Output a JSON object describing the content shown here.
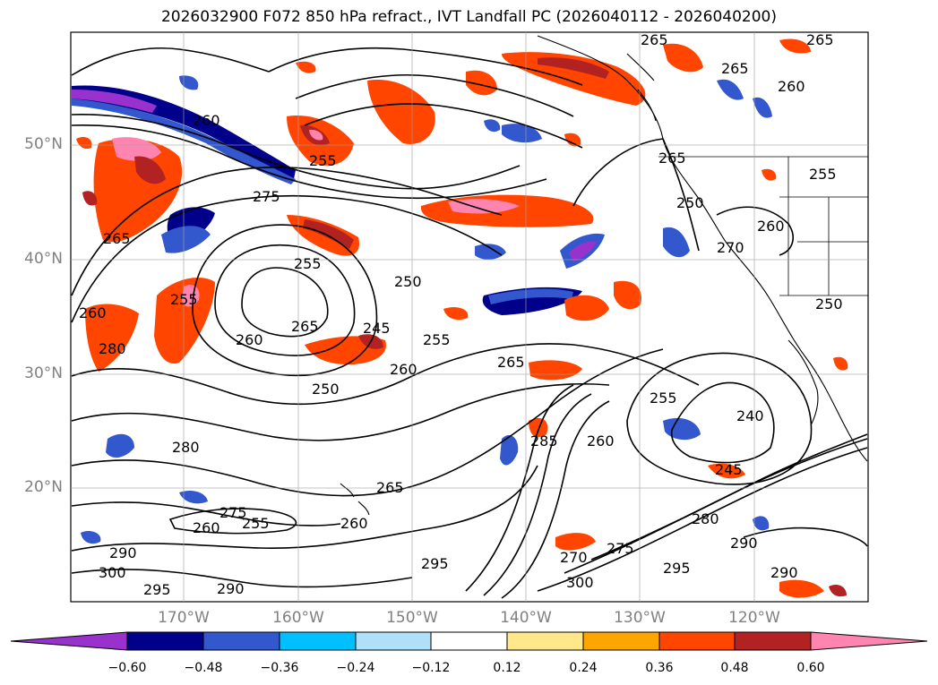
{
  "title": "2026032900 F072 850 hPa refract., IVT Landfall PC (2026040112 - 2026040200)",
  "axis": {
    "lat_labels": [
      "50°N",
      "40°N",
      "30°N",
      "20°N"
    ],
    "lon_labels": [
      "170°W",
      "160°W",
      "150°W",
      "140°W",
      "130°W",
      "120°W"
    ],
    "tick_color": "#808080"
  },
  "colorbar": {
    "ticks": [
      "−0.60",
      "−0.48",
      "−0.36",
      "−0.24",
      "−0.12",
      "0.12",
      "0.24",
      "0.36",
      "0.48",
      "0.60"
    ],
    "colors": [
      "#9932cc",
      "#00008b",
      "#3357cc",
      "#00bfff",
      "#b0e0f8",
      "#ffffff",
      "#ffe78a",
      "#ffa500",
      "#ff4500",
      "#b22222",
      "#ff85b0"
    ]
  },
  "contour_labels": [
    "265",
    "265",
    "265",
    "260",
    "260",
    "255",
    "275",
    "265",
    "260",
    "255",
    "250",
    "255",
    "265",
    "260",
    "245",
    "250",
    "255",
    "260",
    "265",
    "270",
    "280",
    "260",
    "240",
    "250",
    "255",
    "250",
    "245",
    "260",
    "280",
    "265",
    "285",
    "280",
    "275",
    "290",
    "300",
    "295",
    "290",
    "255",
    "260",
    "275",
    "270",
    "295",
    "300",
    "290",
    "295",
    "290",
    "265",
    "260",
    "255"
  ]
}
